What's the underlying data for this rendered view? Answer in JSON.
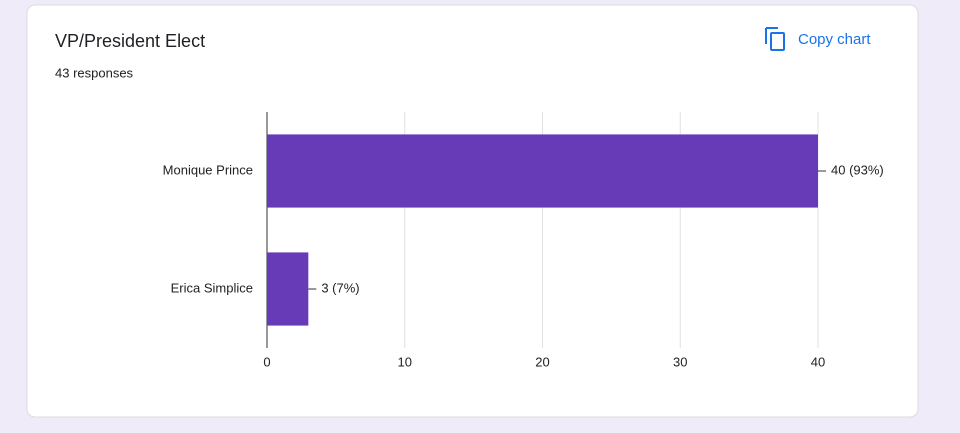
{
  "chart_data": {
    "type": "bar",
    "orientation": "horizontal",
    "title": "VP/President Elect",
    "subtitle": "43 responses",
    "categories": [
      "Monique Prince",
      "Erica Simplice"
    ],
    "values": [
      40,
      3
    ],
    "value_labels": [
      "40 (93%)",
      "3 (7%)"
    ],
    "color": "#673ab7",
    "xlim": [
      0,
      40
    ],
    "xticks": [
      0,
      10,
      20,
      30,
      40
    ],
    "grid": true
  },
  "toolbar": {
    "copy_button": "Copy chart"
  }
}
